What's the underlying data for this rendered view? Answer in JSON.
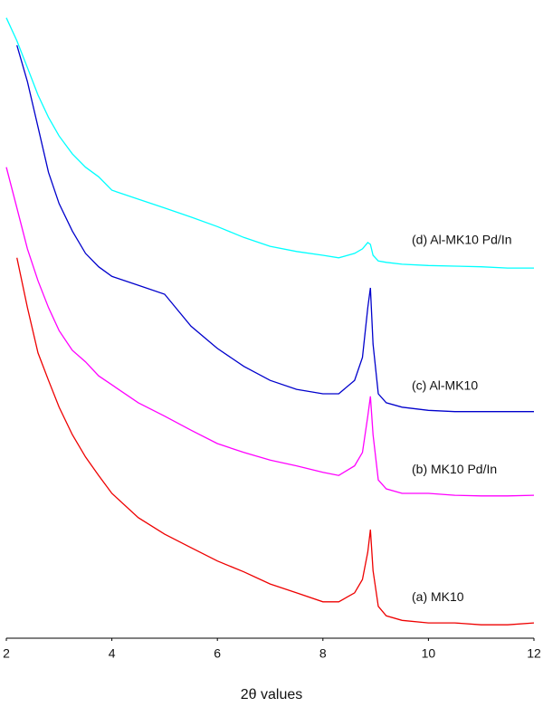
{
  "chart_data": {
    "type": "line",
    "xlabel": "2θ values",
    "x": [
      2.0,
      2.2,
      2.4,
      2.6,
      2.8,
      3.0,
      3.25,
      3.5,
      3.75,
      4.0,
      4.5,
      5.0,
      5.5,
      6.0,
      6.5,
      7.0,
      7.5,
      8.0,
      8.3,
      8.6,
      8.75,
      8.85,
      8.9,
      8.95,
      9.05,
      9.2,
      9.5,
      10.0,
      10.5,
      11.0,
      11.5,
      12.0
    ],
    "xlim": [
      2,
      12
    ],
    "xticks": [
      2,
      4,
      6,
      8,
      10,
      12
    ],
    "ylim": [
      0,
      100
    ],
    "series": [
      {
        "name": "(d) Al-MK10 Pd/In",
        "color": "#00ffff",
        "values": [
          97.2,
          93.6,
          89.4,
          85.1,
          81.6,
          78.7,
          75.9,
          73.8,
          72.3,
          70.2,
          68.8,
          67.4,
          66.0,
          64.5,
          62.8,
          61.4,
          60.6,
          60.0,
          59.6,
          60.3,
          61.0,
          62.0,
          61.7,
          60.0,
          59.1,
          58.9,
          58.6,
          58.4,
          58.3,
          58.2,
          58.0,
          58.0
        ]
      },
      {
        "name": "(c) Al-MK10",
        "color": "#0000cc",
        "values": [
          null,
          92.9,
          87.2,
          80.1,
          73.0,
          68.1,
          63.8,
          60.3,
          58.2,
          56.7,
          55.3,
          53.9,
          48.9,
          45.4,
          42.6,
          40.4,
          39.0,
          38.3,
          38.3,
          40.4,
          44.0,
          51.8,
          54.9,
          46.1,
          38.3,
          36.9,
          36.2,
          35.7,
          35.5,
          35.5,
          35.5,
          35.5
        ]
      },
      {
        "name": "(b) MK10 Pd/In",
        "color": "#ff00ff",
        "values": [
          73.8,
          67.4,
          61.0,
          56.0,
          51.8,
          48.2,
          45.1,
          43.3,
          41.1,
          39.7,
          36.9,
          34.8,
          32.6,
          30.5,
          29.1,
          27.9,
          27.0,
          26.0,
          25.5,
          27.0,
          29.1,
          34.8,
          37.9,
          31.9,
          24.8,
          23.4,
          22.7,
          22.7,
          22.4,
          22.3,
          22.3,
          22.4
        ]
      },
      {
        "name": "(a) MK10",
        "color": "#ee0000",
        "values": [
          null,
          59.6,
          51.8,
          44.7,
          40.4,
          36.2,
          31.9,
          28.4,
          25.5,
          22.7,
          18.9,
          16.3,
          14.2,
          12.1,
          10.4,
          8.5,
          7.1,
          5.7,
          5.7,
          7.1,
          9.2,
          13.5,
          17.0,
          10.6,
          5.0,
          3.5,
          2.8,
          2.4,
          2.4,
          2.1,
          2.1,
          2.4
        ]
      }
    ]
  }
}
